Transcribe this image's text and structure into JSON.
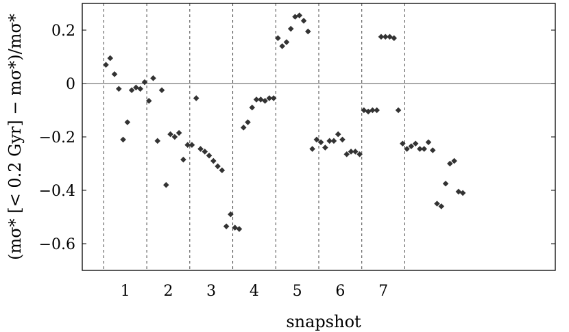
{
  "chart_data": {
    "type": "scatter",
    "xlabel": "snapshot",
    "ylabel": "(mσ* [< 0.2 Gyr] − mσ*)/mσ*",
    "x_tick_labels": [
      "1",
      "2",
      "3",
      "4",
      "5",
      "6",
      "7"
    ],
    "y_ticks": [
      0.2,
      0,
      -0.2,
      -0.4,
      -0.6
    ],
    "y_tick_labels": [
      "0.2",
      "0",
      "−0.2",
      "−0.4",
      "−0.6"
    ],
    "xlim": [
      0,
      11
    ],
    "ylim": [
      -0.7,
      0.3
    ],
    "group_boundaries": [
      0.5,
      1.5,
      2.5,
      3.5,
      4.5,
      5.5,
      6.5,
      7.5
    ],
    "zero_line": 0,
    "marker": "diamond",
    "marker_color": "#333333",
    "grid": "vertical dashed lines between snapshots",
    "points": [
      [
        0.55,
        0.07
      ],
      [
        0.65,
        0.095
      ],
      [
        0.75,
        0.035
      ],
      [
        0.85,
        -0.02
      ],
      [
        0.95,
        -0.21
      ],
      [
        1.05,
        -0.145
      ],
      [
        1.15,
        -0.025
      ],
      [
        1.25,
        -0.015
      ],
      [
        1.35,
        -0.02
      ],
      [
        1.45,
        0.005
      ],
      [
        1.55,
        -0.065
      ],
      [
        1.65,
        0.02
      ],
      [
        1.75,
        -0.215
      ],
      [
        1.85,
        -0.025
      ],
      [
        1.95,
        -0.38
      ],
      [
        2.05,
        -0.19
      ],
      [
        2.15,
        -0.2
      ],
      [
        2.25,
        -0.185
      ],
      [
        2.35,
        -0.285
      ],
      [
        2.45,
        -0.23
      ],
      [
        2.55,
        -0.23
      ],
      [
        2.65,
        -0.055
      ],
      [
        2.75,
        -0.245
      ],
      [
        2.85,
        -0.255
      ],
      [
        2.95,
        -0.27
      ],
      [
        3.05,
        -0.29
      ],
      [
        3.15,
        -0.31
      ],
      [
        3.25,
        -0.325
      ],
      [
        3.35,
        -0.535
      ],
      [
        3.45,
        -0.49
      ],
      [
        3.55,
        -0.54
      ],
      [
        3.65,
        -0.545
      ],
      [
        3.75,
        -0.165
      ],
      [
        3.85,
        -0.145
      ],
      [
        3.95,
        -0.09
      ],
      [
        4.05,
        -0.06
      ],
      [
        4.15,
        -0.06
      ],
      [
        4.25,
        -0.065
      ],
      [
        4.35,
        -0.055
      ],
      [
        4.45,
        -0.055
      ],
      [
        4.55,
        0.17
      ],
      [
        4.65,
        0.14
      ],
      [
        4.75,
        0.155
      ],
      [
        4.85,
        0.205
      ],
      [
        4.95,
        0.25
      ],
      [
        5.05,
        0.255
      ],
      [
        5.15,
        0.235
      ],
      [
        5.25,
        0.195
      ],
      [
        5.35,
        -0.245
      ],
      [
        5.45,
        -0.21
      ],
      [
        5.55,
        -0.22
      ],
      [
        5.65,
        -0.24
      ],
      [
        5.75,
        -0.215
      ],
      [
        5.85,
        -0.215
      ],
      [
        5.95,
        -0.19
      ],
      [
        6.05,
        -0.21
      ],
      [
        6.15,
        -0.265
      ],
      [
        6.25,
        -0.255
      ],
      [
        6.35,
        -0.255
      ],
      [
        6.45,
        -0.265
      ],
      [
        6.55,
        -0.1
      ],
      [
        6.65,
        -0.105
      ],
      [
        6.75,
        -0.1
      ],
      [
        6.85,
        -0.1
      ],
      [
        6.95,
        0.175
      ],
      [
        7.05,
        0.175
      ],
      [
        7.15,
        0.175
      ],
      [
        7.25,
        0.17
      ],
      [
        7.35,
        -0.1
      ],
      [
        7.45,
        -0.225
      ],
      [
        7.55,
        -0.245
      ],
      [
        7.65,
        -0.235
      ],
      [
        7.75,
        -0.225
      ],
      [
        7.85,
        -0.245
      ],
      [
        7.95,
        -0.245
      ],
      [
        8.05,
        -0.22
      ],
      [
        8.15,
        -0.25
      ],
      [
        8.25,
        -0.45
      ],
      [
        8.35,
        -0.46
      ],
      [
        8.45,
        -0.375
      ],
      [
        8.55,
        -0.3
      ],
      [
        8.65,
        -0.29
      ],
      [
        8.75,
        -0.405
      ],
      [
        8.85,
        -0.41
      ]
    ]
  }
}
